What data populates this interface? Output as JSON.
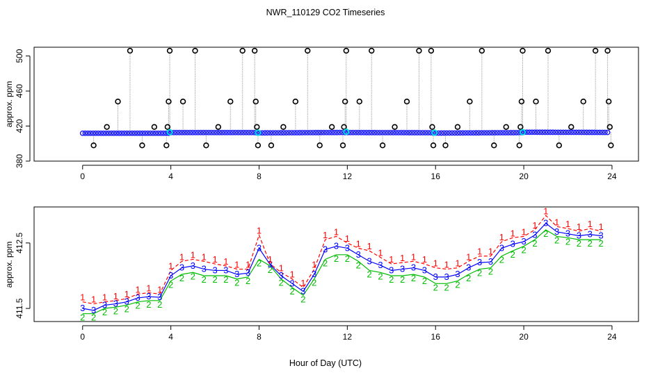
{
  "title": "NWR_110129  CO2 Timeseries",
  "xlabel": "Hour of Day (UTC)",
  "colors": {
    "raw_points": "#000000",
    "raw_line": "#aaaaaa",
    "blue_points": "#1a1aff",
    "cyan_points": "#00dddd",
    "series1": "#ff0000",
    "series2": "#00bb00",
    "series3": "#0000ff"
  },
  "chart_data": [
    {
      "type": "scatter",
      "ylabel": "approx. ppm",
      "xlim": [
        -2.2,
        25.2
      ],
      "ylim": [
        380,
        510
      ],
      "xticks": [
        0,
        4,
        8,
        12,
        16,
        20,
        24
      ],
      "yticks": [
        380,
        420,
        460,
        500
      ],
      "grid": false,
      "baseline_segments": [
        {
          "x0": 0.0,
          "x1": 3.9,
          "y0": 411.8,
          "y1": 411.8
        },
        {
          "x0": 3.9,
          "x1": 7.9,
          "y0": 412.6,
          "y1": 412.6
        },
        {
          "x0": 7.9,
          "x1": 11.9,
          "y0": 412.2,
          "y1": 412.7
        },
        {
          "x0": 11.9,
          "x1": 15.9,
          "y0": 412.6,
          "y1": 412.4
        },
        {
          "x0": 15.9,
          "x1": 19.9,
          "y0": 412.0,
          "y1": 412.5
        },
        {
          "x0": 19.9,
          "x1": 23.8,
          "y0": 413.0,
          "y1": 412.8
        }
      ],
      "cyan_markers": [
        {
          "x": 3.95,
          "y": 413
        },
        {
          "x": 7.95,
          "y": 412.5
        },
        {
          "x": 11.95,
          "y": 413.5
        },
        {
          "x": 15.95,
          "y": 412.5
        },
        {
          "x": 19.95,
          "y": 413
        }
      ],
      "outliers": [
        {
          "x": 0.5,
          "y": 398
        },
        {
          "x": 1.1,
          "y": 419
        },
        {
          "x": 1.6,
          "y": 448
        },
        {
          "x": 2.15,
          "y": 506
        },
        {
          "x": 2.7,
          "y": 398
        },
        {
          "x": 3.25,
          "y": 419
        },
        {
          "x": 3.8,
          "y": 398
        },
        {
          "x": 3.85,
          "y": 419
        },
        {
          "x": 3.9,
          "y": 448
        },
        {
          "x": 3.95,
          "y": 506
        },
        {
          "x": 4.55,
          "y": 448
        },
        {
          "x": 5.1,
          "y": 506
        },
        {
          "x": 5.6,
          "y": 398
        },
        {
          "x": 6.15,
          "y": 419
        },
        {
          "x": 6.7,
          "y": 448
        },
        {
          "x": 7.25,
          "y": 506
        },
        {
          "x": 7.8,
          "y": 506
        },
        {
          "x": 7.85,
          "y": 448
        },
        {
          "x": 7.9,
          "y": 419
        },
        {
          "x": 7.95,
          "y": 398
        },
        {
          "x": 8.55,
          "y": 398
        },
        {
          "x": 9.1,
          "y": 419
        },
        {
          "x": 9.65,
          "y": 448
        },
        {
          "x": 10.2,
          "y": 506
        },
        {
          "x": 10.75,
          "y": 398
        },
        {
          "x": 11.3,
          "y": 419
        },
        {
          "x": 11.8,
          "y": 398
        },
        {
          "x": 11.85,
          "y": 419
        },
        {
          "x": 11.9,
          "y": 448
        },
        {
          "x": 11.95,
          "y": 506
        },
        {
          "x": 12.55,
          "y": 448
        },
        {
          "x": 13.1,
          "y": 506
        },
        {
          "x": 13.6,
          "y": 398
        },
        {
          "x": 14.15,
          "y": 419
        },
        {
          "x": 14.7,
          "y": 448
        },
        {
          "x": 15.25,
          "y": 506
        },
        {
          "x": 15.8,
          "y": 506
        },
        {
          "x": 15.85,
          "y": 419
        },
        {
          "x": 15.9,
          "y": 398
        },
        {
          "x": 16.45,
          "y": 398
        },
        {
          "x": 17.0,
          "y": 419
        },
        {
          "x": 17.55,
          "y": 448
        },
        {
          "x": 18.1,
          "y": 506
        },
        {
          "x": 18.65,
          "y": 398
        },
        {
          "x": 19.2,
          "y": 419
        },
        {
          "x": 19.8,
          "y": 398
        },
        {
          "x": 19.85,
          "y": 419
        },
        {
          "x": 19.9,
          "y": 448
        },
        {
          "x": 19.95,
          "y": 506
        },
        {
          "x": 20.55,
          "y": 448
        },
        {
          "x": 21.1,
          "y": 506
        },
        {
          "x": 21.6,
          "y": 398
        },
        {
          "x": 22.15,
          "y": 419
        },
        {
          "x": 22.7,
          "y": 448
        },
        {
          "x": 23.25,
          "y": 506
        },
        {
          "x": 23.8,
          "y": 506
        },
        {
          "x": 23.85,
          "y": 448
        },
        {
          "x": 23.9,
          "y": 419
        },
        {
          "x": 23.95,
          "y": 398
        }
      ]
    },
    {
      "type": "line",
      "ylabel": "approx. ppm",
      "xlim": [
        -2.2,
        25.2
      ],
      "ylim": [
        411.3,
        413.05
      ],
      "xticks": [
        0,
        4,
        8,
        12,
        16,
        20,
        24
      ],
      "yticks": [
        411.5,
        412.5
      ],
      "grid": false,
      "x": [
        0,
        0.5,
        1,
        1.5,
        2,
        2.5,
        3,
        3.5,
        4,
        4.5,
        5,
        5.5,
        6,
        6.5,
        7,
        7.5,
        8,
        8.5,
        9,
        9.5,
        10,
        10.5,
        11,
        11.5,
        12,
        12.5,
        13,
        13.5,
        14,
        14.5,
        15,
        15.5,
        16,
        16.5,
        17,
        17.5,
        18,
        18.5,
        19,
        19.5,
        20,
        20.5,
        21,
        21.5,
        22,
        22.5,
        23,
        23.5
      ],
      "series": [
        {
          "name": "1",
          "values": [
            411.6,
            411.57,
            411.6,
            411.62,
            411.65,
            411.72,
            411.74,
            411.72,
            412.08,
            412.22,
            412.25,
            412.22,
            412.18,
            412.15,
            412.1,
            412.1,
            412.62,
            412.18,
            412.05,
            411.95,
            411.82,
            412.1,
            412.55,
            412.6,
            412.5,
            412.42,
            412.38,
            412.28,
            412.18,
            412.2,
            412.22,
            412.18,
            412.12,
            412.1,
            412.12,
            412.22,
            412.3,
            412.3,
            412.52,
            412.58,
            412.6,
            412.7,
            412.92,
            412.75,
            412.72,
            412.68,
            412.72,
            412.68
          ]
        },
        {
          "name": "2",
          "values": [
            411.42,
            411.42,
            411.5,
            411.52,
            411.55,
            411.6,
            411.62,
            411.62,
            411.92,
            412.02,
            412.05,
            412.0,
            412.0,
            412.0,
            411.95,
            411.98,
            412.25,
            412.15,
            411.95,
            411.82,
            411.7,
            411.95,
            412.25,
            412.32,
            412.32,
            412.22,
            412.08,
            412.05,
            412.0,
            412.0,
            412.02,
            411.98,
            411.88,
            411.88,
            411.92,
            412.02,
            412.1,
            412.12,
            412.3,
            412.38,
            412.45,
            412.55,
            412.7,
            412.6,
            412.58,
            412.55,
            412.55,
            412.55
          ]
        },
        {
          "name": "3",
          "values": [
            411.5,
            411.47,
            411.55,
            411.57,
            411.6,
            411.66,
            411.68,
            411.67,
            412.0,
            412.12,
            412.15,
            412.1,
            412.08,
            412.08,
            412.02,
            412.04,
            412.42,
            412.17,
            412.0,
            411.88,
            411.76,
            412.02,
            412.4,
            412.45,
            412.42,
            412.32,
            412.22,
            412.16,
            412.08,
            412.1,
            412.12,
            412.08,
            411.98,
            411.98,
            412.02,
            412.12,
            412.2,
            412.21,
            412.42,
            412.48,
            412.52,
            412.62,
            412.8,
            412.67,
            412.64,
            412.61,
            412.63,
            412.61
          ]
        }
      ]
    }
  ]
}
